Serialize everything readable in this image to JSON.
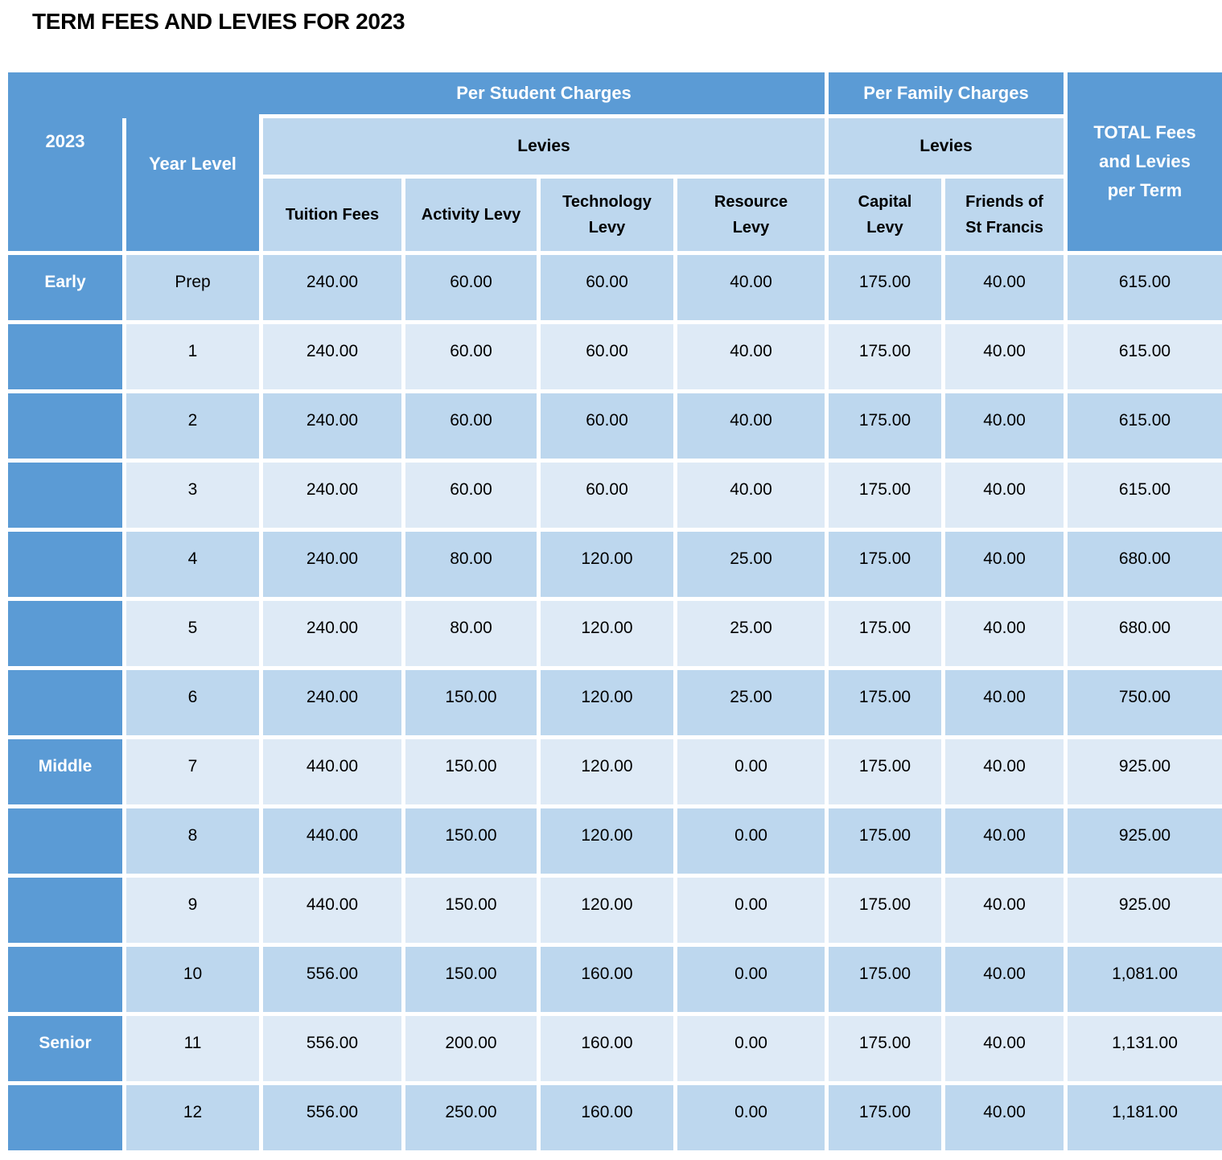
{
  "title": "TERM FEES AND LEVIES FOR 2023",
  "colors": {
    "header_blue": "#5B9BD5",
    "row_stripe_dark": "#BDD7EE",
    "row_stripe_light": "#DEEAF6",
    "gridline": "#FFFFFF",
    "header_text": "#FFFFFF",
    "body_text": "#000000"
  },
  "table": {
    "headers": {
      "year": "2023",
      "year_level": "Year Level",
      "per_student": "Per Student Charges",
      "per_family": "Per Family Charges",
      "levies_student": "Levies",
      "levies_family": "Levies",
      "total": "TOTAL Fees\nand Levies\nper Term",
      "tuition": "Tuition Fees",
      "activity": "Activity Levy",
      "technology": "Technology\nLevy",
      "resource": "Resource\nLevy",
      "capital": "Capital\nLevy",
      "friends": "Friends of\nSt Francis"
    },
    "rows": [
      {
        "section": "Early",
        "year": "Prep",
        "tuition": "240.00",
        "activity": "60.00",
        "technology": "60.00",
        "resource": "40.00",
        "capital": "175.00",
        "friends": "40.00",
        "total": "615.00"
      },
      {
        "section": "",
        "year": "1",
        "tuition": "240.00",
        "activity": "60.00",
        "technology": "60.00",
        "resource": "40.00",
        "capital": "175.00",
        "friends": "40.00",
        "total": "615.00"
      },
      {
        "section": "",
        "year": "2",
        "tuition": "240.00",
        "activity": "60.00",
        "technology": "60.00",
        "resource": "40.00",
        "capital": "175.00",
        "friends": "40.00",
        "total": "615.00"
      },
      {
        "section": "",
        "year": "3",
        "tuition": "240.00",
        "activity": "60.00",
        "technology": "60.00",
        "resource": "40.00",
        "capital": "175.00",
        "friends": "40.00",
        "total": "615.00"
      },
      {
        "section": "",
        "year": "4",
        "tuition": "240.00",
        "activity": "80.00",
        "technology": "120.00",
        "resource": "25.00",
        "capital": "175.00",
        "friends": "40.00",
        "total": "680.00"
      },
      {
        "section": "",
        "year": "5",
        "tuition": "240.00",
        "activity": "80.00",
        "technology": "120.00",
        "resource": "25.00",
        "capital": "175.00",
        "friends": "40.00",
        "total": "680.00"
      },
      {
        "section": "",
        "year": "6",
        "tuition": "240.00",
        "activity": "150.00",
        "technology": "120.00",
        "resource": "25.00",
        "capital": "175.00",
        "friends": "40.00",
        "total": "750.00"
      },
      {
        "section": "Middle",
        "year": "7",
        "tuition": "440.00",
        "activity": "150.00",
        "technology": "120.00",
        "resource": "0.00",
        "capital": "175.00",
        "friends": "40.00",
        "total": "925.00"
      },
      {
        "section": "",
        "year": "8",
        "tuition": "440.00",
        "activity": "150.00",
        "technology": "120.00",
        "resource": "0.00",
        "capital": "175.00",
        "friends": "40.00",
        "total": "925.00"
      },
      {
        "section": "",
        "year": "9",
        "tuition": "440.00",
        "activity": "150.00",
        "technology": "120.00",
        "resource": "0.00",
        "capital": "175.00",
        "friends": "40.00",
        "total": "925.00"
      },
      {
        "section": "",
        "year": "10",
        "tuition": "556.00",
        "activity": "150.00",
        "technology": "160.00",
        "resource": "0.00",
        "capital": "175.00",
        "friends": "40.00",
        "total": "1,081.00"
      },
      {
        "section": "Senior",
        "year": "11",
        "tuition": "556.00",
        "activity": "200.00",
        "technology": "160.00",
        "resource": "0.00",
        "capital": "175.00",
        "friends": "40.00",
        "total": "1,131.00"
      },
      {
        "section": "",
        "year": "12",
        "tuition": "556.00",
        "activity": "250.00",
        "technology": "160.00",
        "resource": "0.00",
        "capital": "175.00",
        "friends": "40.00",
        "total": "1,181.00"
      }
    ]
  }
}
